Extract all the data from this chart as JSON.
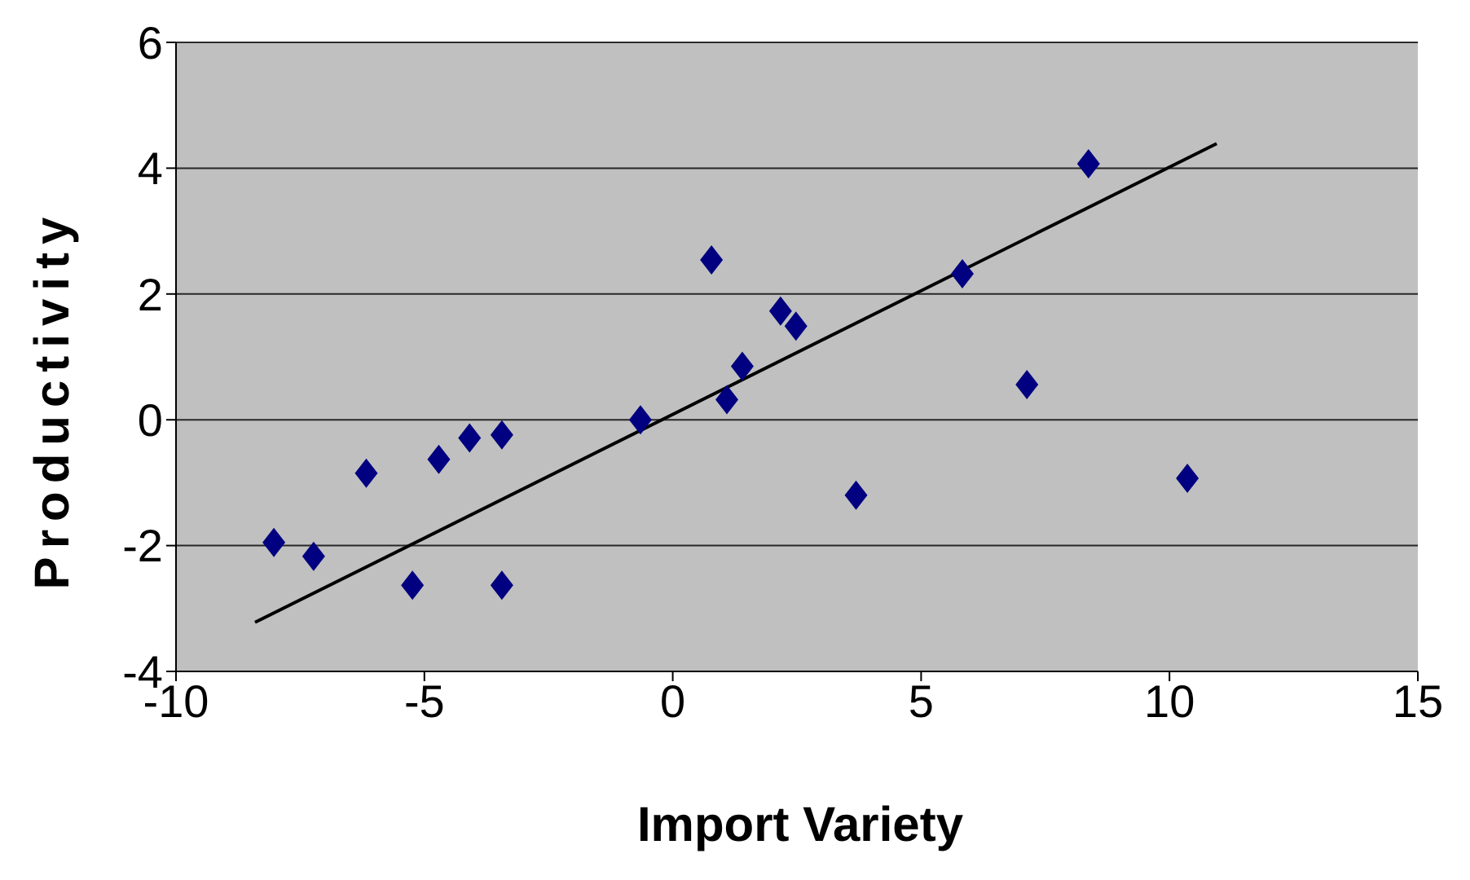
{
  "chart_data": {
    "type": "scatter",
    "xlabel": "Import Variety",
    "ylabel": "Productivity",
    "xlim": [
      -10,
      15
    ],
    "xticks": [
      -10,
      -5,
      0,
      5,
      10,
      15
    ],
    "ylim": [
      -4,
      6
    ],
    "yticks": [
      -4,
      -2,
      0,
      2,
      4,
      6
    ],
    "grid": "y",
    "legend": false,
    "series": [
      {
        "type": "scatter",
        "color": "#000080",
        "marker": "diamond",
        "x": [
          -8.03,
          -7.23,
          -6.17,
          -5.24,
          -4.71,
          -4.09,
          -3.44,
          -3.44,
          -0.65,
          0.78,
          1.09,
          1.4,
          2.17,
          2.48,
          3.69,
          5.83,
          7.13,
          8.37,
          10.36
        ],
        "values": [
          -1.95,
          -2.17,
          -0.85,
          -2.63,
          -0.63,
          -0.29,
          -0.24,
          -2.63,
          0.0,
          2.54,
          0.32,
          0.85,
          1.73,
          1.49,
          -1.2,
          2.32,
          0.56,
          4.07,
          -0.93
        ]
      },
      {
        "type": "line",
        "color": "#000000",
        "marker": "none",
        "line_style": "solid",
        "x": [
          -8.41,
          10.95
        ],
        "values": [
          -3.22,
          4.39
        ]
      }
    ]
  }
}
